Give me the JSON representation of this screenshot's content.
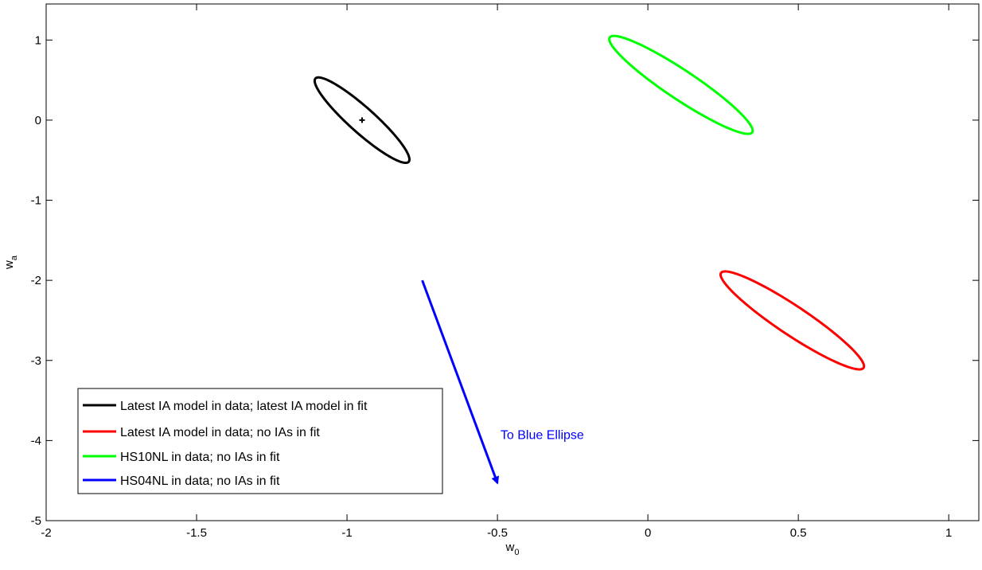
{
  "chart_data": {
    "type": "line",
    "title": "",
    "xlabel": {
      "base": "w",
      "sub": "0"
    },
    "ylabel": {
      "base": "w",
      "sub": "a"
    },
    "xlim": [
      -2,
      1.1
    ],
    "ylim": [
      -5,
      1.45
    ],
    "xticks": [
      -2,
      -1.5,
      -1,
      -0.5,
      0,
      0.5,
      1
    ],
    "xtick_labels": [
      "-2",
      "-1.5",
      "-1",
      "-0.5",
      "0",
      "0.5",
      "1"
    ],
    "yticks": [
      -5,
      -4,
      -3,
      -2,
      -1,
      0,
      1
    ],
    "ytick_labels": [
      "-5",
      "-4",
      "-3",
      "-2",
      "-1",
      "0",
      "1"
    ],
    "grid": false,
    "legend_position": "bottom-left",
    "series": [
      {
        "name": "Latest IA model in data; latest IA model in fit",
        "color": "#000000",
        "ellipse": {
          "center": [
            -0.95,
            0.0
          ],
          "u": [
            0.155,
            -0.52
          ],
          "v": [
            -0.028,
            -0.118
          ]
        }
      },
      {
        "name": "Latest IA model in data; no IAs in fit",
        "color": "#ff0000",
        "ellipse": {
          "center": [
            0.48,
            -2.5
          ],
          "u": [
            0.235,
            -0.6
          ],
          "v": [
            -0.04,
            -0.118
          ]
        }
      },
      {
        "name": "HS10NL in data; no IAs in fit",
        "color": "#00ff00",
        "ellipse": {
          "center": [
            0.11,
            0.44
          ],
          "u": [
            0.235,
            -0.6
          ],
          "v": [
            -0.04,
            -0.118
          ]
        }
      },
      {
        "name": "HS04NL in data; no IAs in fit",
        "color": "#0000ff"
      }
    ],
    "center_marker": {
      "x": -0.95,
      "y": 0.0
    },
    "annotation": {
      "text": "To Blue Ellipse",
      "color": "#0000ff",
      "text_anchor": [
        -0.49,
        -4.0
      ],
      "arrow_from": [
        -0.75,
        -2.0
      ],
      "arrow_to": [
        -0.5,
        -4.53
      ]
    }
  }
}
